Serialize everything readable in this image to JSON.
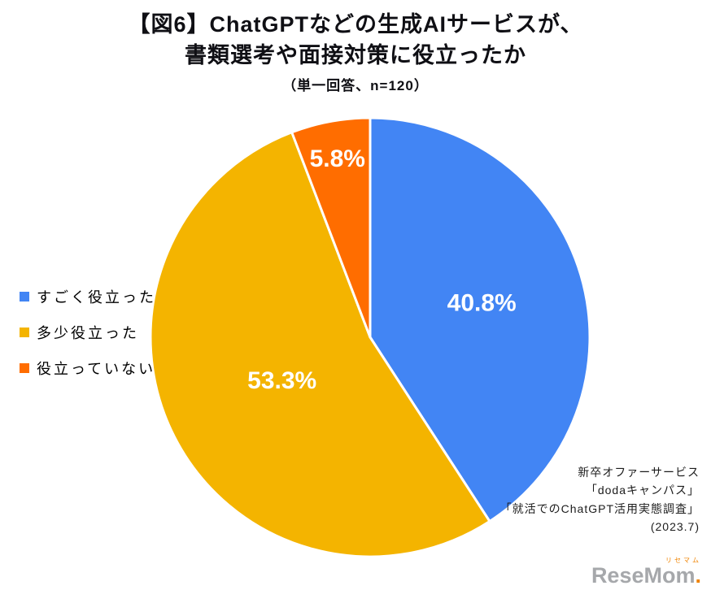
{
  "title": {
    "line1": "【図6】ChatGPTなどの生成AIサービスが、",
    "line2": "書類選考や面接対策に役立ったか",
    "subtitle": "（単一回答、n=120）"
  },
  "chart_data": {
    "type": "pie",
    "title": "【図6】ChatGPTなどの生成AIサービスが、書類選考や面接対策に役立ったか（単一回答、n=120）",
    "categories": [
      "すごく役立った",
      "多少役立った",
      "役立っていない"
    ],
    "values": [
      40.8,
      53.3,
      5.8
    ],
    "labels": [
      "40.8%",
      "53.3%",
      "5.8%"
    ],
    "colors": [
      "#4285F4",
      "#F4B400",
      "#FF6D00"
    ],
    "start_angle_deg": -90,
    "direction": "clockwise",
    "label_color": "#ffffff",
    "label_radius_fractions": [
      0.53,
      0.45,
      0.82
    ],
    "legend_position": "left",
    "grid": false
  },
  "legend": {
    "items": [
      {
        "label": "すごく役立った",
        "color": "#4285F4"
      },
      {
        "label": "多少役立った",
        "color": "#F4B400"
      },
      {
        "label": "役立っていない",
        "color": "#FF6D00"
      }
    ]
  },
  "source": {
    "line1": "新卒オファーサービス",
    "line2": "「dodaキャンパス」",
    "line3": "「就活でのChatGPT活用実態調査」",
    "line4": "(2023.7)"
  },
  "watermark": {
    "small": "リセマム",
    "brand": "ReseMom",
    "dot": "."
  }
}
